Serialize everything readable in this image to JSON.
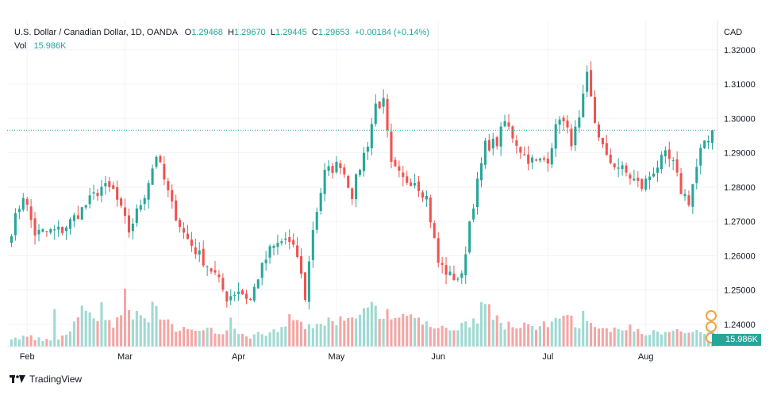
{
  "legend": {
    "symbol": "U.S. Dollar / Canadian Dollar, 1D, OANDA",
    "o_label": "O",
    "o": "1.29468",
    "h_label": "H",
    "h": "1.29670",
    "l_label": "L",
    "l": "1.29445",
    "c_label": "C",
    "c": "1.29653",
    "change": "+0.00184 (+0.14%)",
    "vol_label": "Vol",
    "vol": "15.986K"
  },
  "axis": {
    "unit": "CAD"
  },
  "current_volume_label": "15.986K",
  "branding": {
    "name": "TradingView"
  },
  "colors": {
    "up": "#26a69a",
    "down": "#ef5350",
    "vol_up": "#9fd9d2",
    "vol_down": "#f4a6a4",
    "grid": "#f0f3fa"
  },
  "chart_data": {
    "type": "candlestick",
    "title": "U.S. Dollar / Canadian Dollar, 1D, OANDA",
    "y_ticks": [
      1.32,
      1.31,
      1.3,
      1.29,
      1.28,
      1.27,
      1.26,
      1.25,
      1.24
    ],
    "y_tick_labels": [
      "1.32000",
      "1.31000",
      "1.30000",
      "1.29000",
      "1.28000",
      "1.27000",
      "1.26000",
      "1.25000",
      "1.24000"
    ],
    "ylim": [
      1.2335,
      1.3285
    ],
    "x_month_labels": [
      "Feb",
      "Mar",
      "Apr",
      "May",
      "Jun",
      "Jul",
      "Aug"
    ],
    "x_month_index": [
      4,
      29,
      58,
      83,
      109,
      137,
      162
    ],
    "last_price": 1.29653,
    "price_anchors": [
      [
        0,
        1.2675
      ],
      [
        3,
        1.2778
      ],
      [
        6,
        1.2665
      ],
      [
        13,
        1.2675
      ],
      [
        18,
        1.2735
      ],
      [
        23,
        1.28
      ],
      [
        26,
        1.279
      ],
      [
        30,
        1.2672
      ],
      [
        34,
        1.278
      ],
      [
        37,
        1.2895
      ],
      [
        41,
        1.2745
      ],
      [
        44,
        1.2665
      ],
      [
        47,
        1.2615
      ],
      [
        52,
        1.2545
      ],
      [
        55,
        1.2478
      ],
      [
        58,
        1.25
      ],
      [
        61,
        1.247
      ],
      [
        63,
        1.254
      ],
      [
        66,
        1.2615
      ],
      [
        70,
        1.265
      ],
      [
        73,
        1.26
      ],
      [
        75,
        1.248
      ],
      [
        77,
        1.268
      ],
      [
        80,
        1.284
      ],
      [
        84,
        1.287
      ],
      [
        87,
        1.278
      ],
      [
        89,
        1.286
      ],
      [
        91,
        1.293
      ],
      [
        93,
        1.304
      ],
      [
        95,
        1.3045
      ],
      [
        97,
        1.286
      ],
      [
        100,
        1.282
      ],
      [
        103,
        1.282
      ],
      [
        106,
        1.277
      ],
      [
        109,
        1.258
      ],
      [
        112,
        1.254
      ],
      [
        115,
        1.2535
      ],
      [
        117,
        1.27
      ],
      [
        121,
        1.292
      ],
      [
        124,
        1.293
      ],
      [
        126,
        1.299
      ],
      [
        128,
        1.295
      ],
      [
        131,
        1.289
      ],
      [
        134,
        1.287
      ],
      [
        137,
        1.2885
      ],
      [
        140,
        1.301
      ],
      [
        143,
        1.2935
      ],
      [
        145,
        1.299
      ],
      [
        147,
        1.312
      ],
      [
        149,
        1.299
      ],
      [
        152,
        1.288
      ],
      [
        155,
        1.286
      ],
      [
        158,
        1.283
      ],
      [
        161,
        1.28
      ],
      [
        164,
        1.285
      ],
      [
        167,
        1.289
      ],
      [
        169,
        1.2865
      ],
      [
        171,
        1.279
      ],
      [
        173,
        1.276
      ],
      [
        176,
        1.2905
      ],
      [
        178,
        1.2935
      ],
      [
        179,
        1.29653
      ]
    ],
    "volume_anchors": [
      [
        0,
        5
      ],
      [
        4,
        6
      ],
      [
        8,
        4
      ],
      [
        11,
        3
      ],
      [
        14,
        7
      ],
      [
        17,
        18
      ],
      [
        20,
        17
      ],
      [
        23,
        14
      ],
      [
        26,
        12
      ],
      [
        28,
        16
      ],
      [
        29,
        26
      ],
      [
        31,
        18
      ],
      [
        34,
        14
      ],
      [
        36,
        24
      ],
      [
        38,
        15
      ],
      [
        41,
        12
      ],
      [
        44,
        10
      ],
      [
        47,
        8
      ],
      [
        50,
        9
      ],
      [
        53,
        9
      ],
      [
        56,
        10
      ],
      [
        58,
        7
      ],
      [
        61,
        6
      ],
      [
        64,
        8
      ],
      [
        67,
        9
      ],
      [
        70,
        10
      ],
      [
        72,
        14
      ],
      [
        75,
        12
      ],
      [
        78,
        13
      ],
      [
        81,
        14
      ],
      [
        84,
        15
      ],
      [
        87,
        18
      ],
      [
        90,
        20
      ],
      [
        92,
        22
      ],
      [
        95,
        16
      ],
      [
        98,
        15
      ],
      [
        101,
        17
      ],
      [
        104,
        14
      ],
      [
        107,
        12
      ],
      [
        110,
        10
      ],
      [
        113,
        11
      ],
      [
        116,
        13
      ],
      [
        119,
        18
      ],
      [
        121,
        22
      ],
      [
        123,
        19
      ],
      [
        126,
        12
      ],
      [
        129,
        11
      ],
      [
        132,
        12
      ],
      [
        135,
        13
      ],
      [
        138,
        14
      ],
      [
        141,
        15
      ],
      [
        143,
        16
      ],
      [
        146,
        13
      ],
      [
        149,
        12
      ],
      [
        152,
        11
      ],
      [
        155,
        10
      ],
      [
        158,
        12
      ],
      [
        161,
        9
      ],
      [
        164,
        8
      ],
      [
        167,
        8
      ],
      [
        170,
        9
      ],
      [
        173,
        8
      ],
      [
        176,
        9
      ],
      [
        179,
        10
      ]
    ],
    "volume_spikes": [
      [
        11,
        22
      ],
      [
        18,
        24
      ],
      [
        23,
        26
      ],
      [
        29,
        34
      ],
      [
        32,
        21
      ],
      [
        56,
        17
      ],
      [
        71,
        19
      ],
      [
        93,
        24
      ],
      [
        96,
        22
      ],
      [
        104,
        17
      ],
      [
        120,
        26
      ],
      [
        146,
        21
      ]
    ]
  }
}
